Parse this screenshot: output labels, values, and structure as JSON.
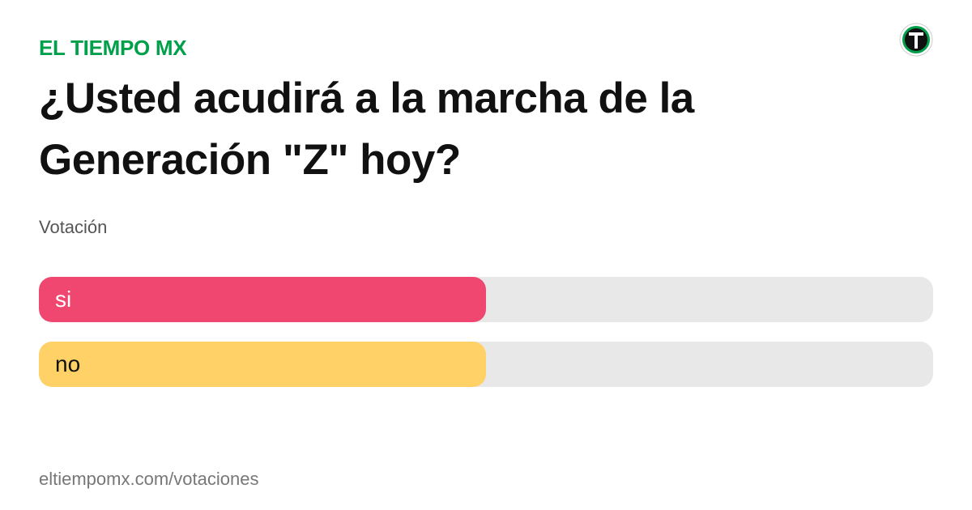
{
  "brand": "EL TIEMPO MX",
  "title": "¿Usted acudirá a la marcha de la Generación \"Z\" hoy?",
  "subtitle": "Votación",
  "footer": "eltiempomx.com/votaciones",
  "chart_data": {
    "type": "bar",
    "orientation": "horizontal",
    "categories": [
      "si",
      "no"
    ],
    "values": [
      50,
      50
    ],
    "colors": [
      "#ef476f",
      "#ffd166"
    ],
    "label_colors": [
      "#ffffff",
      "#111111"
    ],
    "xlim": [
      0,
      100
    ]
  }
}
